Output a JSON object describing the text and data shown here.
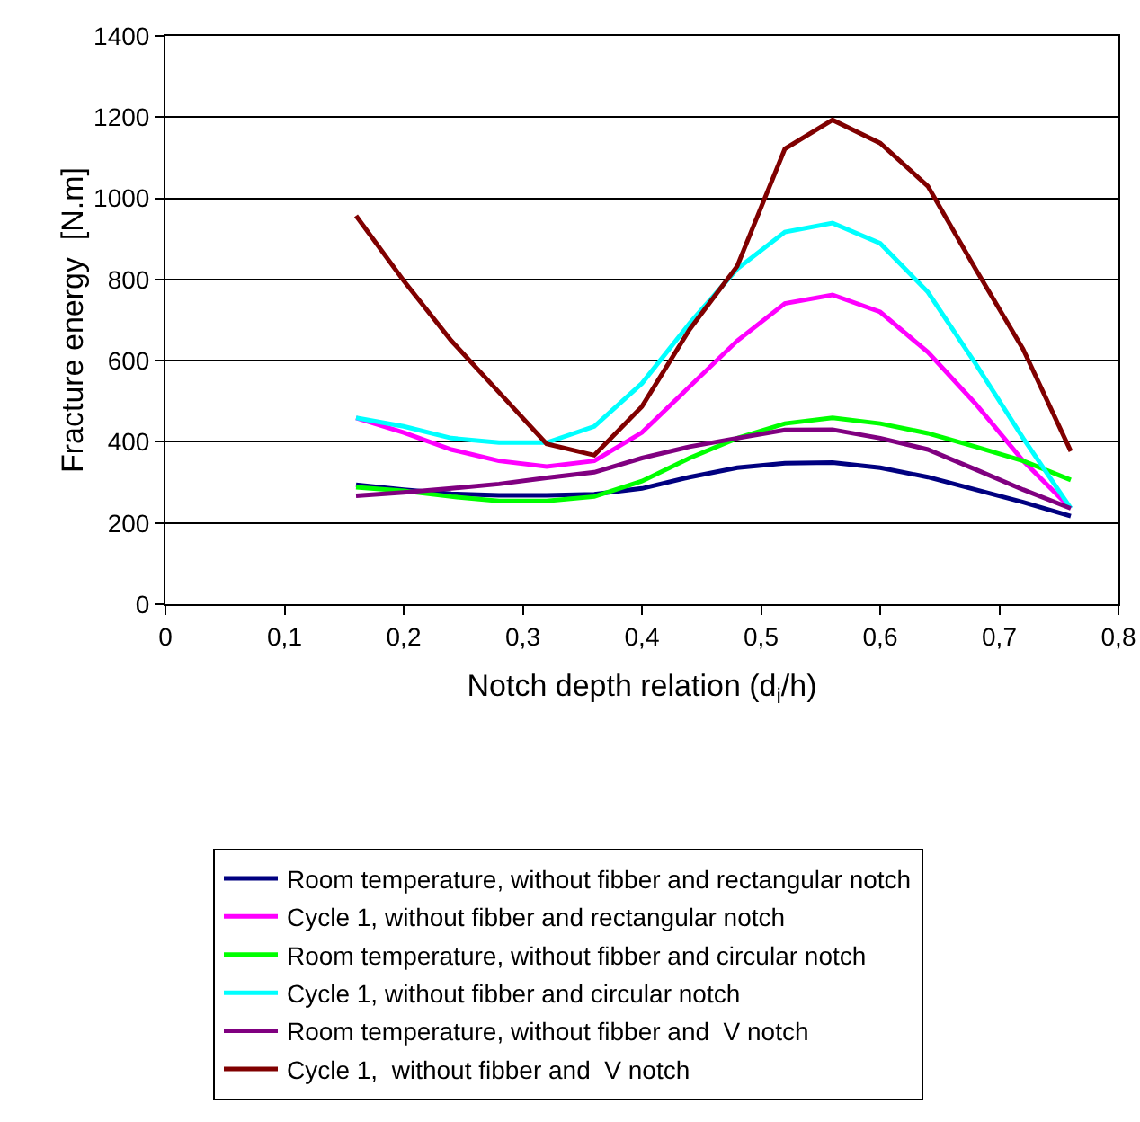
{
  "chart_data": {
    "type": "line",
    "xlabel": "Notch depth relation (d$_{i}$/h)",
    "ylabel": "Fracture energy  [N.m]",
    "x": [
      0.16,
      0.2,
      0.24,
      0.28,
      0.32,
      0.36,
      0.4,
      0.44,
      0.48,
      0.52,
      0.56,
      0.6,
      0.64,
      0.68,
      0.72,
      0.76
    ],
    "series": [
      {
        "name": "Room temperature, without fibber and rectangular notch",
        "color": "#000080",
        "values": [
          294,
          282,
          272,
          268,
          268,
          271,
          285,
          313,
          336,
          347,
          349,
          336,
          313,
          282,
          251,
          217
        ]
      },
      {
        "name": "Cycle 1, without fibber and rectangular notch",
        "color": "#ff00ff",
        "values": [
          459,
          423,
          381,
          353,
          339,
          353,
          423,
          536,
          649,
          741,
          762,
          720,
          621,
          494,
          353,
          236
        ]
      },
      {
        "name": "Room temperature, without fibber and circular notch",
        "color": "#00ff00",
        "values": [
          288,
          279,
          265,
          254,
          254,
          265,
          303,
          360,
          409,
          445,
          459,
          445,
          421,
          388,
          353,
          306
        ]
      },
      {
        "name": "Cycle 1, without fibber and circular notch",
        "color": "#00ffff",
        "values": [
          459,
          438,
          409,
          398,
          398,
          438,
          544,
          692,
          826,
          917,
          939,
          889,
          769,
          593,
          409,
          236
        ]
      },
      {
        "name": "Room temperature, without fibber and  V notch",
        "color": "#800080",
        "values": [
          267,
          275,
          285,
          296,
          311,
          325,
          360,
          388,
          409,
          429,
          430,
          409,
          381,
          332,
          282,
          236
        ]
      },
      {
        "name": "Cycle 1,  without fibber and  V notch",
        "color": "#800000",
        "values": [
          957,
          797,
          649,
          522,
          395,
          367,
          487,
          677,
          833,
          1122,
          1193,
          1136,
          1030,
          826,
          628,
          377
        ]
      }
    ],
    "xlim": [
      0,
      0.8
    ],
    "xticks": [
      0,
      {
        "value": 0.1,
        "label": "0,1"
      },
      {
        "value": 0.2,
        "label": "0,2"
      },
      {
        "value": 0.3,
        "label": "0,3"
      },
      {
        "value": 0.4,
        "label": "0,4"
      },
      {
        "value": 0.5,
        "label": "0,5"
      },
      {
        "value": 0.6,
        "label": "0,6"
      },
      {
        "value": 0.7,
        "label": "0,7"
      },
      {
        "value": 0.8,
        "label": "0,8"
      }
    ],
    "ylim": [
      0,
      1400
    ],
    "yticks": [
      0,
      200,
      400,
      600,
      800,
      1000,
      1200,
      1400
    ],
    "grid": "y",
    "legend": "bottom",
    "marker": "none",
    "line_style": "solid"
  }
}
